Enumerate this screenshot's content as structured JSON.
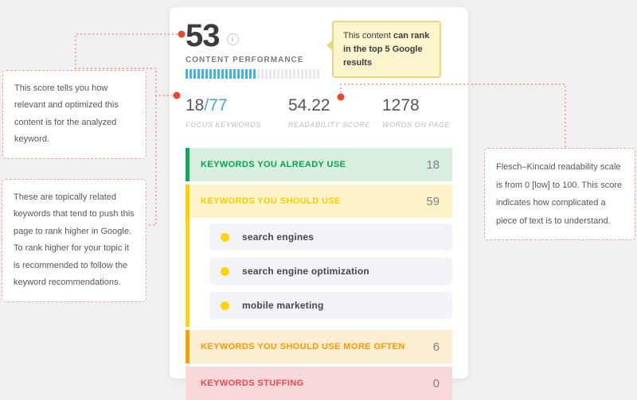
{
  "colors": {
    "background": "#f0f0f1",
    "accent_red_dot": "#e7492c",
    "connector_line": "#ef9277",
    "progress_blue": "#41b4e6",
    "green": "#00a651",
    "yellow": "#ffd400",
    "orange": "#ff9900",
    "red": "#f0464c"
  },
  "card": {
    "score": "53",
    "score_label": "CONTENT PERFORMANCE",
    "progress_percent": 53,
    "tooltip": {
      "text_normal": "This content ",
      "text_bold": "can rank",
      "line2": "in the top 5 Google results"
    },
    "stats": [
      {
        "value": "18",
        "suffix": "/77",
        "label": "FOCUS KEYWORDS"
      },
      {
        "value": "54.22",
        "suffix": "",
        "label": "READABILITY SCORE"
      },
      {
        "value": "1278",
        "suffix": "",
        "label": "WORDS ON PAGE"
      }
    ],
    "sections": [
      {
        "label": "KEYWORDS YOU ALREADY USE",
        "count": "18"
      },
      {
        "label": "KEYWORDS YOU SHOULD USE",
        "count": "59",
        "keywords": [
          "search engines",
          "search engine optimization",
          "mobile marketing"
        ]
      },
      {
        "label": "KEYWORDS YOU SHOULD USE MORE OFTEN",
        "count": "6"
      },
      {
        "label": "KEYWORDS STUFFING",
        "count": "0"
      }
    ]
  },
  "annotations": [
    {
      "text": "This score tells you how relevant and optimized this content is for the analyzed keyword."
    },
    {
      "text": "These are topically related keywords that tend to push this page to rank higher in Google. To rank higher for your topic it is recommended to follow the keyword recommendations."
    },
    {
      "text": "Flesch–Kincaid readability scale is from 0 [low] to 100. This score indicates how complicated a piece of text is to understand."
    }
  ]
}
